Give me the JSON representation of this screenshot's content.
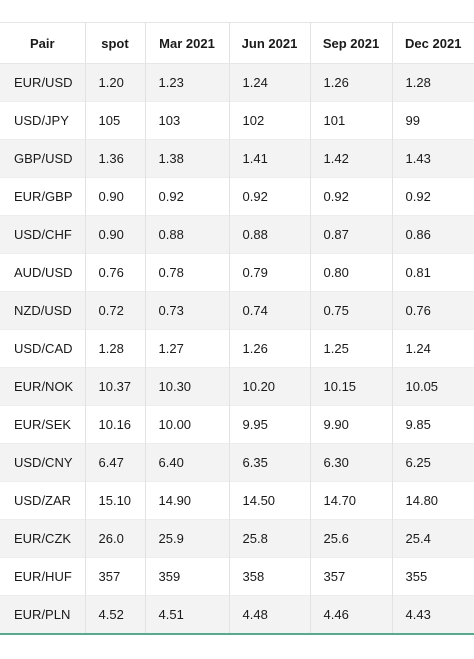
{
  "table": {
    "headers": [
      "Pair",
      "spot",
      "Mar 2021",
      "Jun 2021",
      "Sep 2021",
      "Dec 2021"
    ],
    "rows": [
      [
        "EUR/USD",
        "1.20",
        "1.23",
        "1.24",
        "1.26",
        "1.28"
      ],
      [
        "USD/JPY",
        "105",
        "103",
        "102",
        "101",
        "99"
      ],
      [
        "GBP/USD",
        "1.36",
        "1.38",
        "1.41",
        "1.42",
        "1.43"
      ],
      [
        "EUR/GBP",
        "0.90",
        "0.92",
        "0.92",
        "0.92",
        "0.92"
      ],
      [
        "USD/CHF",
        "0.90",
        "0.88",
        "0.88",
        "0.87",
        "0.86"
      ],
      [
        "AUD/USD",
        "0.76",
        "0.78",
        "0.79",
        "0.80",
        "0.81"
      ],
      [
        "NZD/USD",
        "0.72",
        "0.73",
        "0.74",
        "0.75",
        "0.76"
      ],
      [
        "USD/CAD",
        "1.28",
        "1.27",
        "1.26",
        "1.25",
        "1.24"
      ],
      [
        "EUR/NOK",
        "10.37",
        "10.30",
        "10.20",
        "10.15",
        "10.05"
      ],
      [
        "EUR/SEK",
        "10.16",
        "10.00",
        "9.95",
        "9.90",
        "9.85"
      ],
      [
        "USD/CNY",
        "6.47",
        "6.40",
        "6.35",
        "6.30",
        "6.25"
      ],
      [
        "USD/ZAR",
        "15.10",
        "14.90",
        "14.50",
        "14.70",
        "14.80"
      ],
      [
        "EUR/CZK",
        "26.0",
        "25.9",
        "25.8",
        "25.6",
        "25.4"
      ],
      [
        "EUR/HUF",
        "357",
        "359",
        "358",
        "357",
        "355"
      ],
      [
        "EUR/PLN",
        "4.52",
        "4.51",
        "4.48",
        "4.46",
        "4.43"
      ]
    ]
  },
  "colors": {
    "accent_line": "#5aa98d",
    "stripe": "#f3f3f3"
  }
}
